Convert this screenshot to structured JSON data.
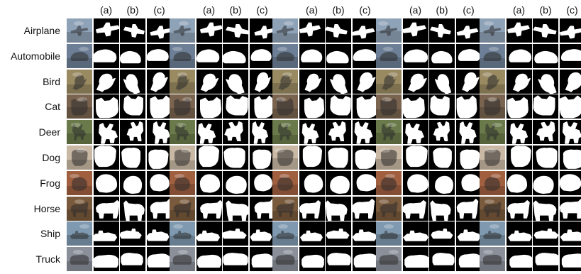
{
  "figure": {
    "row_labels": [
      "Airplane",
      "Automobile",
      "Bird",
      "Cat",
      "Deer",
      "Dog",
      "Frog",
      "Horse",
      "Ship",
      "Truck"
    ],
    "column_headers": [
      "(a)",
      "(b)",
      "(c)"
    ],
    "groups": 5,
    "colors": {
      "background": "#ffffff",
      "mask_background": "#000000",
      "mask_foreground": "#ffffff",
      "text": "#111111"
    },
    "row_tints": [
      "#8fa3b8",
      "#6d7f96",
      "#9a8a62",
      "#7a6450",
      "#6b7a4a",
      "#c9b9a4",
      "#a06040",
      "#7a5a3c",
      "#7f9ab0",
      "#8a8f9a"
    ],
    "mask_icons": [
      "airplane-mask-icon",
      "automobile-mask-icon",
      "bird-mask-icon",
      "cat-mask-icon",
      "deer-mask-icon",
      "dog-mask-icon",
      "frog-mask-icon",
      "horse-mask-icon",
      "ship-mask-icon",
      "truck-mask-icon"
    ]
  }
}
